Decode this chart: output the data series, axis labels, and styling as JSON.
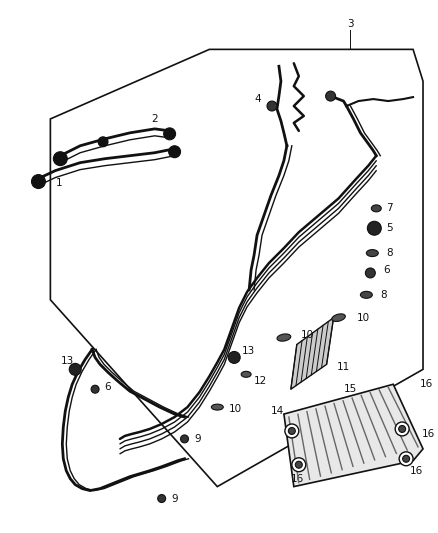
{
  "bg_color": "#ffffff",
  "line_color": "#111111",
  "fig_width": 4.38,
  "fig_height": 5.33,
  "dpi": 100
}
